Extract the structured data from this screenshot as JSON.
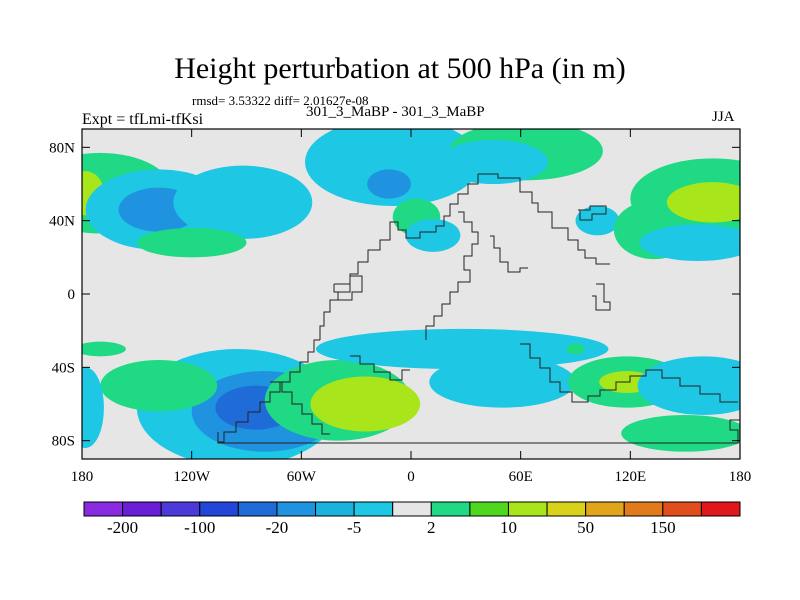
{
  "chart_data": {
    "type": "heatmap",
    "title": "Height perturbation at 500 hPa (in m)",
    "stats_text": "rmsd= 3.53322 diff= 2.01627e-08",
    "subtitle": "301_3_MaBP - 301_3_MaBP",
    "left_label": "Expt = tfLmi-tfKsi",
    "right_label": "JJA",
    "xlim": [
      -180,
      180
    ],
    "ylim": [
      -90,
      90
    ],
    "x_ticks": [
      {
        "value": -180,
        "label": "180"
      },
      {
        "value": -120,
        "label": "120W"
      },
      {
        "value": -60,
        "label": "60W"
      },
      {
        "value": 0,
        "label": "0"
      },
      {
        "value": 60,
        "label": "60E"
      },
      {
        "value": 120,
        "label": "120E"
      },
      {
        "value": 180,
        "label": "180"
      }
    ],
    "y_ticks": [
      {
        "value": 80,
        "label": "80N"
      },
      {
        "value": 40,
        "label": "40N"
      },
      {
        "value": 0,
        "label": "0"
      },
      {
        "value": -40,
        "label": "40S"
      },
      {
        "value": -80,
        "label": "80S"
      }
    ],
    "colorbar": {
      "colors": [
        "#8a2be2",
        "#6a1ed8",
        "#4b3ad9",
        "#2146d8",
        "#1f6cd8",
        "#1f93e0",
        "#1bb2e0",
        "#1ec8e5",
        "#e6e6e6",
        "#20d985",
        "#4fd61f",
        "#a8e61b",
        "#d9d21b",
        "#e0a51b",
        "#e07a1b",
        "#e04e1b",
        "#e0181b"
      ],
      "labels": [
        {
          "boundary": 1,
          "text": "-200"
        },
        {
          "boundary": 3,
          "text": "-100"
        },
        {
          "boundary": 5,
          "text": "-20"
        },
        {
          "boundary": 7,
          "text": "-5"
        },
        {
          "boundary": 9,
          "text": "2"
        },
        {
          "boundary": 11,
          "text": "10"
        },
        {
          "boundary": 13,
          "text": "50"
        },
        {
          "boundary": 15,
          "text": "150"
        }
      ]
    },
    "anomaly_blobs": [
      {
        "lon": -170,
        "lat": 55,
        "w": 40,
        "h": 22,
        "level": "pos_low"
      },
      {
        "lon": -178,
        "lat": 55,
        "w": 10,
        "h": 12,
        "level": "pos_mid"
      },
      {
        "lon": -138,
        "lat": 46,
        "w": 40,
        "h": 22,
        "level": "neg_low"
      },
      {
        "lon": -138,
        "lat": 46,
        "w": 22,
        "h": 12,
        "level": "neg_mid"
      },
      {
        "lon": -92,
        "lat": 50,
        "w": 38,
        "h": 20,
        "level": "neg_low"
      },
      {
        "lon": -120,
        "lat": 28,
        "w": 30,
        "h": 8,
        "level": "pos_low"
      },
      {
        "lon": -10,
        "lat": 72,
        "w": 48,
        "h": 24,
        "level": "neg_low"
      },
      {
        "lon": -12,
        "lat": 60,
        "w": 12,
        "h": 8,
        "level": "neg_mid"
      },
      {
        "lon": 63,
        "lat": 78,
        "w": 42,
        "h": 16,
        "level": "pos_low"
      },
      {
        "lon": 45,
        "lat": 72,
        "w": 30,
        "h": 12,
        "level": "neg_low"
      },
      {
        "lon": 3,
        "lat": 42,
        "w": 13,
        "h": 10,
        "level": "pos_low"
      },
      {
        "lon": 12,
        "lat": 32,
        "w": 15,
        "h": 9,
        "level": "neg_low"
      },
      {
        "lon": 102,
        "lat": 40,
        "w": 12,
        "h": 8,
        "level": "neg_low"
      },
      {
        "lon": 133,
        "lat": 35,
        "w": 22,
        "h": 16,
        "level": "pos_low"
      },
      {
        "lon": 165,
        "lat": 52,
        "w": 45,
        "h": 22,
        "level": "pos_low"
      },
      {
        "lon": 165,
        "lat": 50,
        "w": 25,
        "h": 11,
        "level": "pos_mid"
      },
      {
        "lon": 157,
        "lat": 28,
        "w": 32,
        "h": 10,
        "level": "neg_low"
      },
      {
        "lon": -95,
        "lat": -62,
        "w": 55,
        "h": 32,
        "level": "neg_low"
      },
      {
        "lon": -80,
        "lat": -64,
        "w": 40,
        "h": 22,
        "level": "neg_mid"
      },
      {
        "lon": -85,
        "lat": -62,
        "w": 22,
        "h": 12,
        "level": "neg_high"
      },
      {
        "lon": -138,
        "lat": -50,
        "w": 32,
        "h": 14,
        "level": "pos_low"
      },
      {
        "lon": -40,
        "lat": -58,
        "w": 40,
        "h": 22,
        "level": "pos_low"
      },
      {
        "lon": -25,
        "lat": -60,
        "w": 30,
        "h": 15,
        "level": "pos_mid"
      },
      {
        "lon": -178,
        "lat": -62,
        "w": 10,
        "h": 22,
        "level": "neg_low"
      },
      {
        "lon": -170,
        "lat": -30,
        "w": 14,
        "h": 4,
        "level": "pos_low"
      },
      {
        "lon": 28,
        "lat": -30,
        "w": 80,
        "h": 11,
        "level": "neg_low"
      },
      {
        "lon": 50,
        "lat": -48,
        "w": 40,
        "h": 14,
        "level": "neg_low"
      },
      {
        "lon": 90,
        "lat": -30,
        "w": 5,
        "h": 3,
        "level": "pos_low"
      },
      {
        "lon": 118,
        "lat": -48,
        "w": 32,
        "h": 14,
        "level": "pos_low"
      },
      {
        "lon": 118,
        "lat": -48,
        "w": 15,
        "h": 6,
        "level": "pos_mid"
      },
      {
        "lon": 160,
        "lat": -50,
        "w": 36,
        "h": 16,
        "level": "neg_low"
      },
      {
        "lon": 150,
        "lat": -76,
        "w": 35,
        "h": 10,
        "level": "pos_low"
      }
    ]
  },
  "palette": {
    "background": "#e6e6e6",
    "neg_low": "#1ec8e5",
    "neg_mid": "#1f93e0",
    "neg_high": "#1f6cd8",
    "pos_low": "#20d985",
    "pos_mid": "#a8e61b"
  }
}
